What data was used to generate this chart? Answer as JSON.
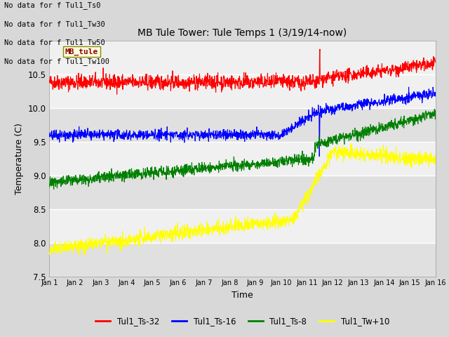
{
  "title": "MB Tule Tower: Tule Temps 1 (3/19/14-now)",
  "xlabel": "Time",
  "ylabel": "Temperature (C)",
  "ylim": [
    7.5,
    11.0
  ],
  "yticks": [
    7.5,
    8.0,
    8.5,
    9.0,
    9.5,
    10.0,
    10.5
  ],
  "n_points": 1500,
  "days": 15,
  "no_data_labels": [
    "No data for f Tul1_Ts0",
    "No data for f Tul1_Tw30",
    "No data for f Tul1_Tw50",
    "No data for f Tul1_Tw100"
  ],
  "tooltip_text": "MB_tule",
  "legend_labels": [
    "Tul1_Ts-32",
    "Tul1_Ts-16",
    "Tul1_Ts-8",
    "Tul1_Tw+10"
  ],
  "legend_colors": [
    "red",
    "blue",
    "green",
    "yellow"
  ],
  "bg_color": "#d8d8d8",
  "plot_bg_light": "#f0f0f0",
  "plot_bg_dark": "#e0e0e0",
  "grid_color": "white",
  "xticklabels": [
    "Jan 1",
    "Jan 2",
    "Jan 3",
    "Jan 4",
    "Jan 5",
    "Jan 6",
    "Jan 7",
    "Jan 8",
    "Jan 9",
    "Jan 10",
    "Jan 11",
    "Jan 12",
    "Jan 13",
    "Jan 14",
    "Jan 15",
    "Jan 16"
  ]
}
